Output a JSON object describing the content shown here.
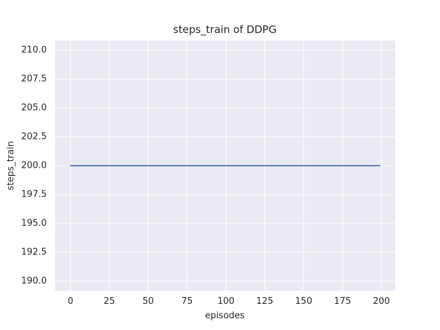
{
  "chart_data": {
    "type": "line",
    "title": "steps_train of DDPG",
    "xlabel": "episodes",
    "ylabel": "steps_train",
    "series": [
      {
        "name": "steps_train",
        "x": [
          0,
          199
        ],
        "y": [
          200,
          200
        ],
        "color": "#4c72b0"
      }
    ],
    "xticks": [
      0,
      25,
      50,
      75,
      100,
      125,
      150,
      175,
      200
    ],
    "xtick_labels": [
      "0",
      "25",
      "50",
      "75",
      "100",
      "125",
      "150",
      "175",
      "200"
    ],
    "yticks": [
      190.0,
      192.5,
      195.0,
      197.5,
      200.0,
      202.5,
      205.0,
      207.5,
      210.0
    ],
    "ytick_labels": [
      "190.0",
      "192.5",
      "195.0",
      "197.5",
      "200.0",
      "202.5",
      "205.0",
      "207.5",
      "210.0"
    ],
    "xlim": [
      -9.95,
      208.95
    ],
    "ylim": [
      189.17,
      210.83
    ],
    "grid": true,
    "legend": null,
    "style": {
      "plot_bg": "#eaeaf2",
      "grid_color": "#ffffff",
      "text_color": "#262626",
      "figure_bg": "#ffffff"
    }
  }
}
